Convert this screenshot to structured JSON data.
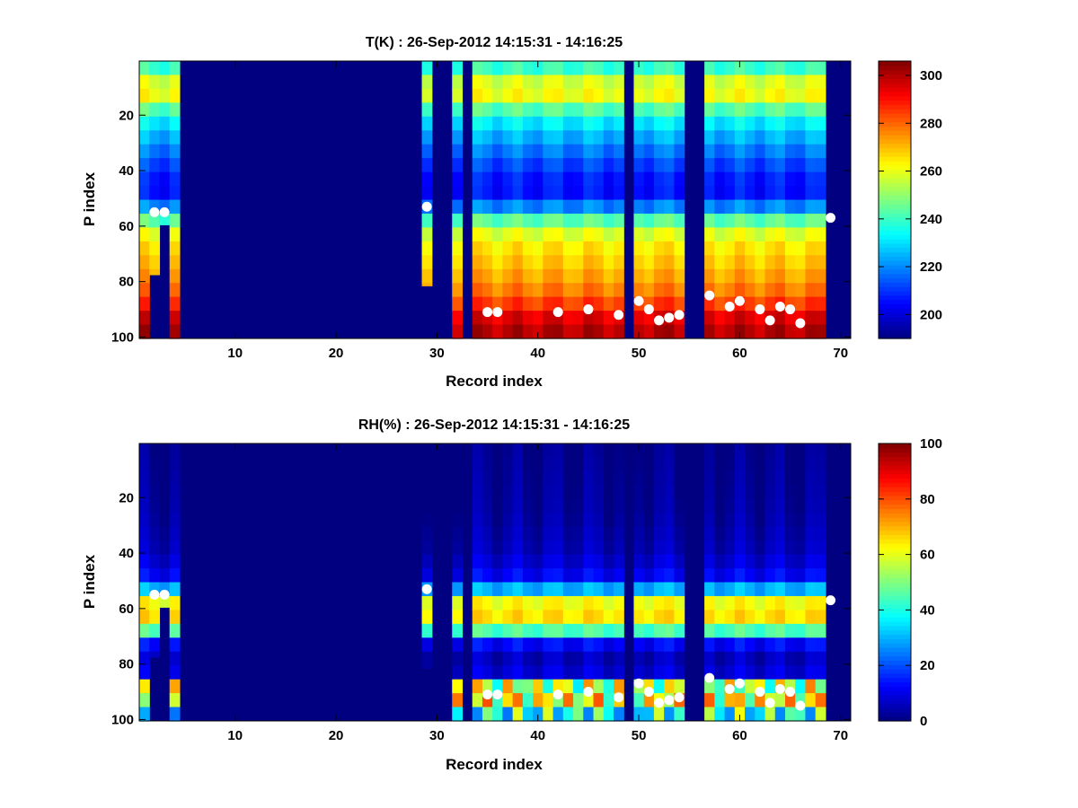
{
  "chart_data": [
    {
      "type": "heatmap",
      "title": "T(K) : 26-Sep-2012 14:15:31 - 14:16:25",
      "xlabel": "Record index",
      "ylabel": "P index",
      "xlim": [
        0.5,
        71
      ],
      "ylim": [
        0.5,
        100.5
      ],
      "xticks": [
        10,
        20,
        30,
        40,
        50,
        60,
        70
      ],
      "yticks": [
        20,
        40,
        60,
        80,
        100
      ],
      "colorbar": {
        "range": [
          190,
          306
        ],
        "ticks": [
          200,
          220,
          240,
          260,
          280,
          300
        ]
      },
      "empty_columns": [
        5,
        6,
        7,
        8,
        9,
        10,
        11,
        12,
        13,
        14,
        15,
        16,
        17,
        18,
        19,
        20,
        21,
        22,
        23,
        24,
        25,
        26,
        27,
        28,
        30,
        31,
        33,
        49,
        55,
        56,
        69,
        70
      ],
      "partial_columns": [
        {
          "col": 2,
          "valid_to": 77
        },
        {
          "col": 3,
          "valid_to": 59
        },
        {
          "col": 29,
          "valid_to": 81
        }
      ],
      "profile": {
        "p": [
          1,
          5,
          8,
          11,
          14,
          20,
          30,
          40,
          46,
          50,
          54,
          58,
          62,
          68,
          75,
          82,
          88,
          93,
          100
        ],
        "values": [
          236,
          244,
          258,
          268,
          258,
          236,
          222,
          210,
          205,
          208,
          224,
          244,
          258,
          265,
          270,
          276,
          285,
          295,
          302
        ]
      },
      "surface_markers": {
        "x": [
          2,
          3,
          29,
          35,
          36,
          42,
          45,
          48,
          50,
          51,
          52,
          53,
          54,
          57,
          59,
          60,
          62,
          63,
          64,
          65,
          66,
          69
        ],
        "y": [
          55,
          55,
          53,
          91,
          91,
          91,
          90,
          92,
          87,
          90,
          94,
          93,
          92,
          85,
          89,
          87,
          90,
          94,
          89,
          90,
          95,
          57
        ]
      }
    },
    {
      "type": "heatmap",
      "title": "RH(%) : 26-Sep-2012 14:15:31 - 14:16:25",
      "xlabel": "Record index",
      "ylabel": "P index",
      "xlim": [
        0.5,
        71
      ],
      "ylim": [
        0.5,
        100.5
      ],
      "xticks": [
        10,
        20,
        30,
        40,
        50,
        60,
        70
      ],
      "yticks": [
        20,
        40,
        60,
        80,
        100
      ],
      "colorbar": {
        "range": [
          0,
          100
        ],
        "ticks": [
          0,
          20,
          40,
          60,
          80,
          100
        ]
      },
      "empty_columns": [
        5,
        6,
        7,
        8,
        9,
        10,
        11,
        12,
        13,
        14,
        15,
        16,
        17,
        18,
        19,
        20,
        21,
        22,
        23,
        24,
        25,
        26,
        27,
        28,
        30,
        31,
        33,
        49,
        55,
        56,
        69,
        70
      ],
      "partial_columns": [
        {
          "col": 2,
          "valid_to": 77
        },
        {
          "col": 3,
          "valid_to": 59
        },
        {
          "col": 29,
          "valid_to": 81
        }
      ],
      "profile": {
        "p": [
          1,
          25,
          40,
          48,
          53,
          56,
          59,
          62,
          65,
          67,
          69,
          71,
          74,
          78,
          82,
          85,
          88,
          91,
          94,
          97,
          100
        ],
        "values": [
          1,
          3,
          6,
          12,
          30,
          58,
          64,
          66,
          64,
          55,
          35,
          18,
          10,
          6,
          6,
          14,
          55,
          70,
          58,
          40,
          40
        ]
      },
      "surface_markers": {
        "x": [
          2,
          3,
          29,
          35,
          36,
          42,
          45,
          48,
          50,
          51,
          52,
          53,
          54,
          57,
          59,
          60,
          62,
          63,
          64,
          65,
          66,
          69
        ],
        "y": [
          55,
          55,
          53,
          91,
          91,
          91,
          90,
          92,
          87,
          90,
          94,
          93,
          92,
          85,
          89,
          87,
          90,
          94,
          89,
          90,
          95,
          57
        ]
      }
    }
  ]
}
